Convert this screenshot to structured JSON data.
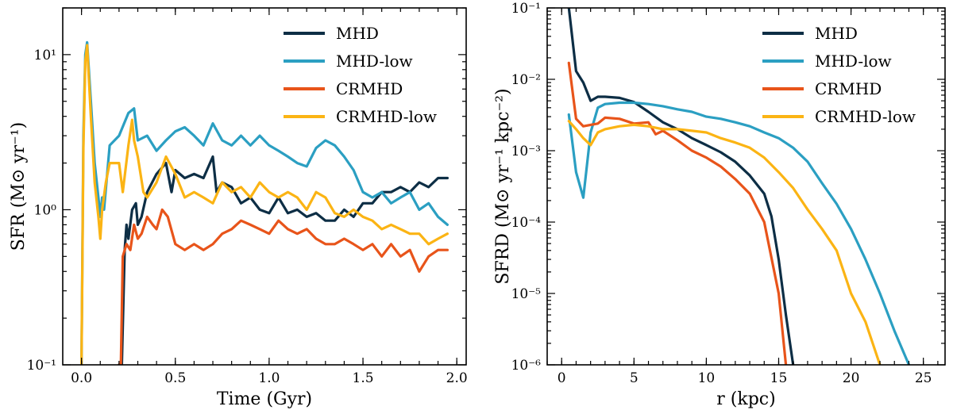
{
  "chart_data": [
    {
      "type": "line",
      "xlabel": "Time (Gyr)",
      "ylabel": "SFR (M⊙ yr⁻¹)",
      "yscale": "log",
      "xlim": [
        -0.1,
        2.05
      ],
      "ylim": [
        0.1,
        20
      ],
      "xticks": [
        0.0,
        0.5,
        1.0,
        1.5,
        2.0
      ],
      "xtick_labels": [
        "0.0",
        "0.5",
        "1.0",
        "1.5",
        "2.0"
      ],
      "yticks": [
        0.1,
        1,
        10
      ],
      "ytick_labels": [
        "10⁻¹",
        "10⁰",
        "10¹"
      ],
      "legend_position": "top-right",
      "series": [
        {
          "name": "MHD",
          "color": "#0d2e45",
          "x": [
            0.2,
            0.215,
            0.23,
            0.24,
            0.25,
            0.27,
            0.29,
            0.3,
            0.32,
            0.35,
            0.4,
            0.45,
            0.48,
            0.5,
            0.55,
            0.6,
            0.65,
            0.7,
            0.72,
            0.75,
            0.8,
            0.85,
            0.9,
            0.95,
            1.0,
            1.05,
            1.1,
            1.15,
            1.2,
            1.25,
            1.3,
            1.35,
            1.4,
            1.45,
            1.5,
            1.55,
            1.6,
            1.65,
            1.7,
            1.75,
            1.8,
            1.85,
            1.9,
            1.95
          ],
          "y": [
            0.1,
            0.1,
            0.55,
            0.8,
            0.65,
            1.0,
            1.1,
            0.8,
            0.9,
            1.3,
            1.7,
            2.0,
            1.3,
            1.8,
            1.6,
            1.7,
            1.6,
            2.2,
            1.3,
            1.5,
            1.4,
            1.1,
            1.2,
            1.0,
            0.95,
            1.2,
            0.95,
            1.0,
            0.9,
            0.95,
            0.85,
            0.85,
            1.0,
            0.9,
            1.1,
            1.1,
            1.3,
            1.3,
            1.4,
            1.3,
            1.5,
            1.4,
            1.6,
            1.6
          ]
        },
        {
          "name": "MHD-low",
          "color": "#2b9fc2",
          "x": [
            0.0,
            0.01,
            0.02,
            0.03,
            0.05,
            0.07,
            0.09,
            0.1,
            0.11,
            0.12,
            0.15,
            0.2,
            0.25,
            0.28,
            0.3,
            0.35,
            0.4,
            0.45,
            0.5,
            0.55,
            0.6,
            0.65,
            0.7,
            0.75,
            0.8,
            0.85,
            0.9,
            0.95,
            1.0,
            1.05,
            1.1,
            1.15,
            1.2,
            1.25,
            1.3,
            1.35,
            1.4,
            1.45,
            1.5,
            1.55,
            1.6,
            1.65,
            1.7,
            1.75,
            1.8,
            1.85,
            1.9,
            1.95
          ],
          "y": [
            0.1,
            3.0,
            10.0,
            12.0,
            5.0,
            2.0,
            1.2,
            0.9,
            1.2,
            1.0,
            2.6,
            3.0,
            4.2,
            4.5,
            2.8,
            3.0,
            2.4,
            2.8,
            3.2,
            3.4,
            3.0,
            2.6,
            3.6,
            2.8,
            2.6,
            3.0,
            2.6,
            3.0,
            2.6,
            2.4,
            2.2,
            2.0,
            1.9,
            2.5,
            2.8,
            2.6,
            2.2,
            1.8,
            1.3,
            1.2,
            1.3,
            1.1,
            1.2,
            1.3,
            1.0,
            1.1,
            0.9,
            0.8
          ]
        },
        {
          "name": "CRMHD",
          "color": "#e8541a",
          "x": [
            0.2,
            0.21,
            0.22,
            0.24,
            0.26,
            0.28,
            0.3,
            0.32,
            0.35,
            0.38,
            0.4,
            0.43,
            0.46,
            0.5,
            0.55,
            0.6,
            0.65,
            0.7,
            0.75,
            0.8,
            0.85,
            0.9,
            0.95,
            1.0,
            1.05,
            1.1,
            1.15,
            1.2,
            1.25,
            1.3,
            1.35,
            1.4,
            1.45,
            1.5,
            1.55,
            1.6,
            1.65,
            1.7,
            1.75,
            1.8,
            1.85,
            1.9,
            1.95
          ],
          "y": [
            0.1,
            0.1,
            0.5,
            0.6,
            0.55,
            0.8,
            0.65,
            0.7,
            0.9,
            0.8,
            0.75,
            1.0,
            0.9,
            0.6,
            0.55,
            0.6,
            0.55,
            0.6,
            0.7,
            0.75,
            0.85,
            0.8,
            0.75,
            0.7,
            0.85,
            0.75,
            0.7,
            0.75,
            0.65,
            0.6,
            0.6,
            0.65,
            0.6,
            0.55,
            0.6,
            0.5,
            0.6,
            0.5,
            0.55,
            0.4,
            0.5,
            0.55,
            0.55
          ]
        },
        {
          "name": "CRMHD-low",
          "color": "#fbb414",
          "x": [
            0.0,
            0.01,
            0.02,
            0.03,
            0.05,
            0.07,
            0.09,
            0.1,
            0.11,
            0.13,
            0.15,
            0.2,
            0.22,
            0.25,
            0.27,
            0.28,
            0.3,
            0.33,
            0.35,
            0.4,
            0.45,
            0.5,
            0.55,
            0.6,
            0.65,
            0.7,
            0.75,
            0.8,
            0.85,
            0.9,
            0.95,
            1.0,
            1.05,
            1.1,
            1.15,
            1.2,
            1.25,
            1.3,
            1.35,
            1.4,
            1.45,
            1.5,
            1.55,
            1.6,
            1.65,
            1.7,
            1.75,
            1.8,
            1.85,
            1.9,
            1.95
          ],
          "y": [
            0.1,
            2.5,
            9.0,
            11.5,
            4.0,
            1.5,
            0.9,
            0.65,
            1.0,
            1.5,
            2.0,
            2.0,
            1.3,
            2.6,
            3.8,
            2.8,
            2.2,
            1.3,
            1.2,
            1.5,
            2.2,
            1.7,
            1.2,
            1.3,
            1.2,
            1.1,
            1.5,
            1.3,
            1.4,
            1.2,
            1.5,
            1.3,
            1.2,
            1.3,
            1.2,
            1.0,
            1.3,
            1.2,
            0.95,
            0.9,
            1.0,
            0.9,
            0.85,
            0.75,
            0.8,
            0.75,
            0.7,
            0.7,
            0.6,
            0.65,
            0.7
          ]
        }
      ]
    },
    {
      "type": "line",
      "xlabel": "r (kpc)",
      "ylabel": "SFRD (M⊙ yr⁻¹ kpc⁻²)",
      "yscale": "log",
      "xlim": [
        -1,
        26.5
      ],
      "ylim": [
        1e-06,
        0.1
      ],
      "xticks": [
        0,
        5,
        10,
        15,
        20,
        25
      ],
      "xtick_labels": [
        "0",
        "5",
        "10",
        "15",
        "20",
        "25"
      ],
      "yticks": [
        1e-06,
        1e-05,
        0.0001,
        0.001,
        0.01,
        0.1
      ],
      "ytick_labels": [
        "10⁻⁶",
        "10⁻⁵",
        "10⁻⁴",
        "10⁻³",
        "10⁻²",
        "10⁻¹"
      ],
      "legend_position": "top-right",
      "series": [
        {
          "name": "MHD",
          "color": "#0d2e45",
          "x": [
            0.5,
            1.0,
            1.5,
            2.0,
            2.5,
            3,
            4,
            5,
            6,
            7,
            8,
            9,
            10,
            11,
            12,
            13,
            14,
            14.5,
            15,
            15.5,
            16
          ],
          "y": [
            0.1,
            0.013,
            0.009,
            0.005,
            0.0057,
            0.0057,
            0.0055,
            0.0048,
            0.0035,
            0.0025,
            0.002,
            0.0015,
            0.0012,
            0.00095,
            0.0007,
            0.00045,
            0.00025,
            0.00012,
            3e-05,
            5e-06,
            1e-06
          ]
        },
        {
          "name": "MHD-low",
          "color": "#2b9fc2",
          "x": [
            0.5,
            1.0,
            1.5,
            2.0,
            2.5,
            3,
            4,
            5,
            6,
            7,
            8,
            9,
            10,
            11,
            12,
            13,
            14,
            15,
            16,
            17,
            18,
            19,
            20,
            21,
            22,
            23,
            24
          ],
          "y": [
            0.0032,
            0.0005,
            0.00022,
            0.0018,
            0.004,
            0.0045,
            0.0047,
            0.0047,
            0.0045,
            0.0042,
            0.0038,
            0.0035,
            0.003,
            0.0028,
            0.0025,
            0.0022,
            0.0018,
            0.0015,
            0.0011,
            0.0007,
            0.00035,
            0.00018,
            8e-05,
            3e-05,
            1e-05,
            3e-06,
            1e-06
          ]
        },
        {
          "name": "CRMHD",
          "color": "#e8541a",
          "x": [
            0.5,
            1.0,
            1.5,
            2.0,
            2.5,
            3,
            4,
            5,
            6,
            6.5,
            7,
            8,
            9,
            10,
            11,
            12,
            13,
            14,
            15,
            15.5
          ],
          "y": [
            0.017,
            0.0028,
            0.0022,
            0.0023,
            0.0024,
            0.0029,
            0.0028,
            0.0024,
            0.0025,
            0.0017,
            0.0019,
            0.0014,
            0.001,
            0.0008,
            0.0006,
            0.0004,
            0.00025,
            0.0001,
            1e-05,
            1e-06
          ]
        },
        {
          "name": "CRMHD-low",
          "color": "#fbb414",
          "x": [
            0.5,
            1.0,
            1.5,
            2.0,
            2.5,
            3,
            4,
            5,
            6,
            7,
            8,
            9,
            10,
            11,
            12,
            13,
            14,
            15,
            16,
            17,
            18,
            19,
            20,
            21,
            22
          ],
          "y": [
            0.0026,
            0.002,
            0.0015,
            0.0012,
            0.0018,
            0.002,
            0.0022,
            0.0023,
            0.0022,
            0.002,
            0.002,
            0.0019,
            0.0018,
            0.0015,
            0.0013,
            0.0011,
            0.0008,
            0.0005,
            0.0003,
            0.00015,
            8e-05,
            4e-05,
            1e-05,
            4e-06,
            1e-06
          ]
        }
      ]
    }
  ]
}
